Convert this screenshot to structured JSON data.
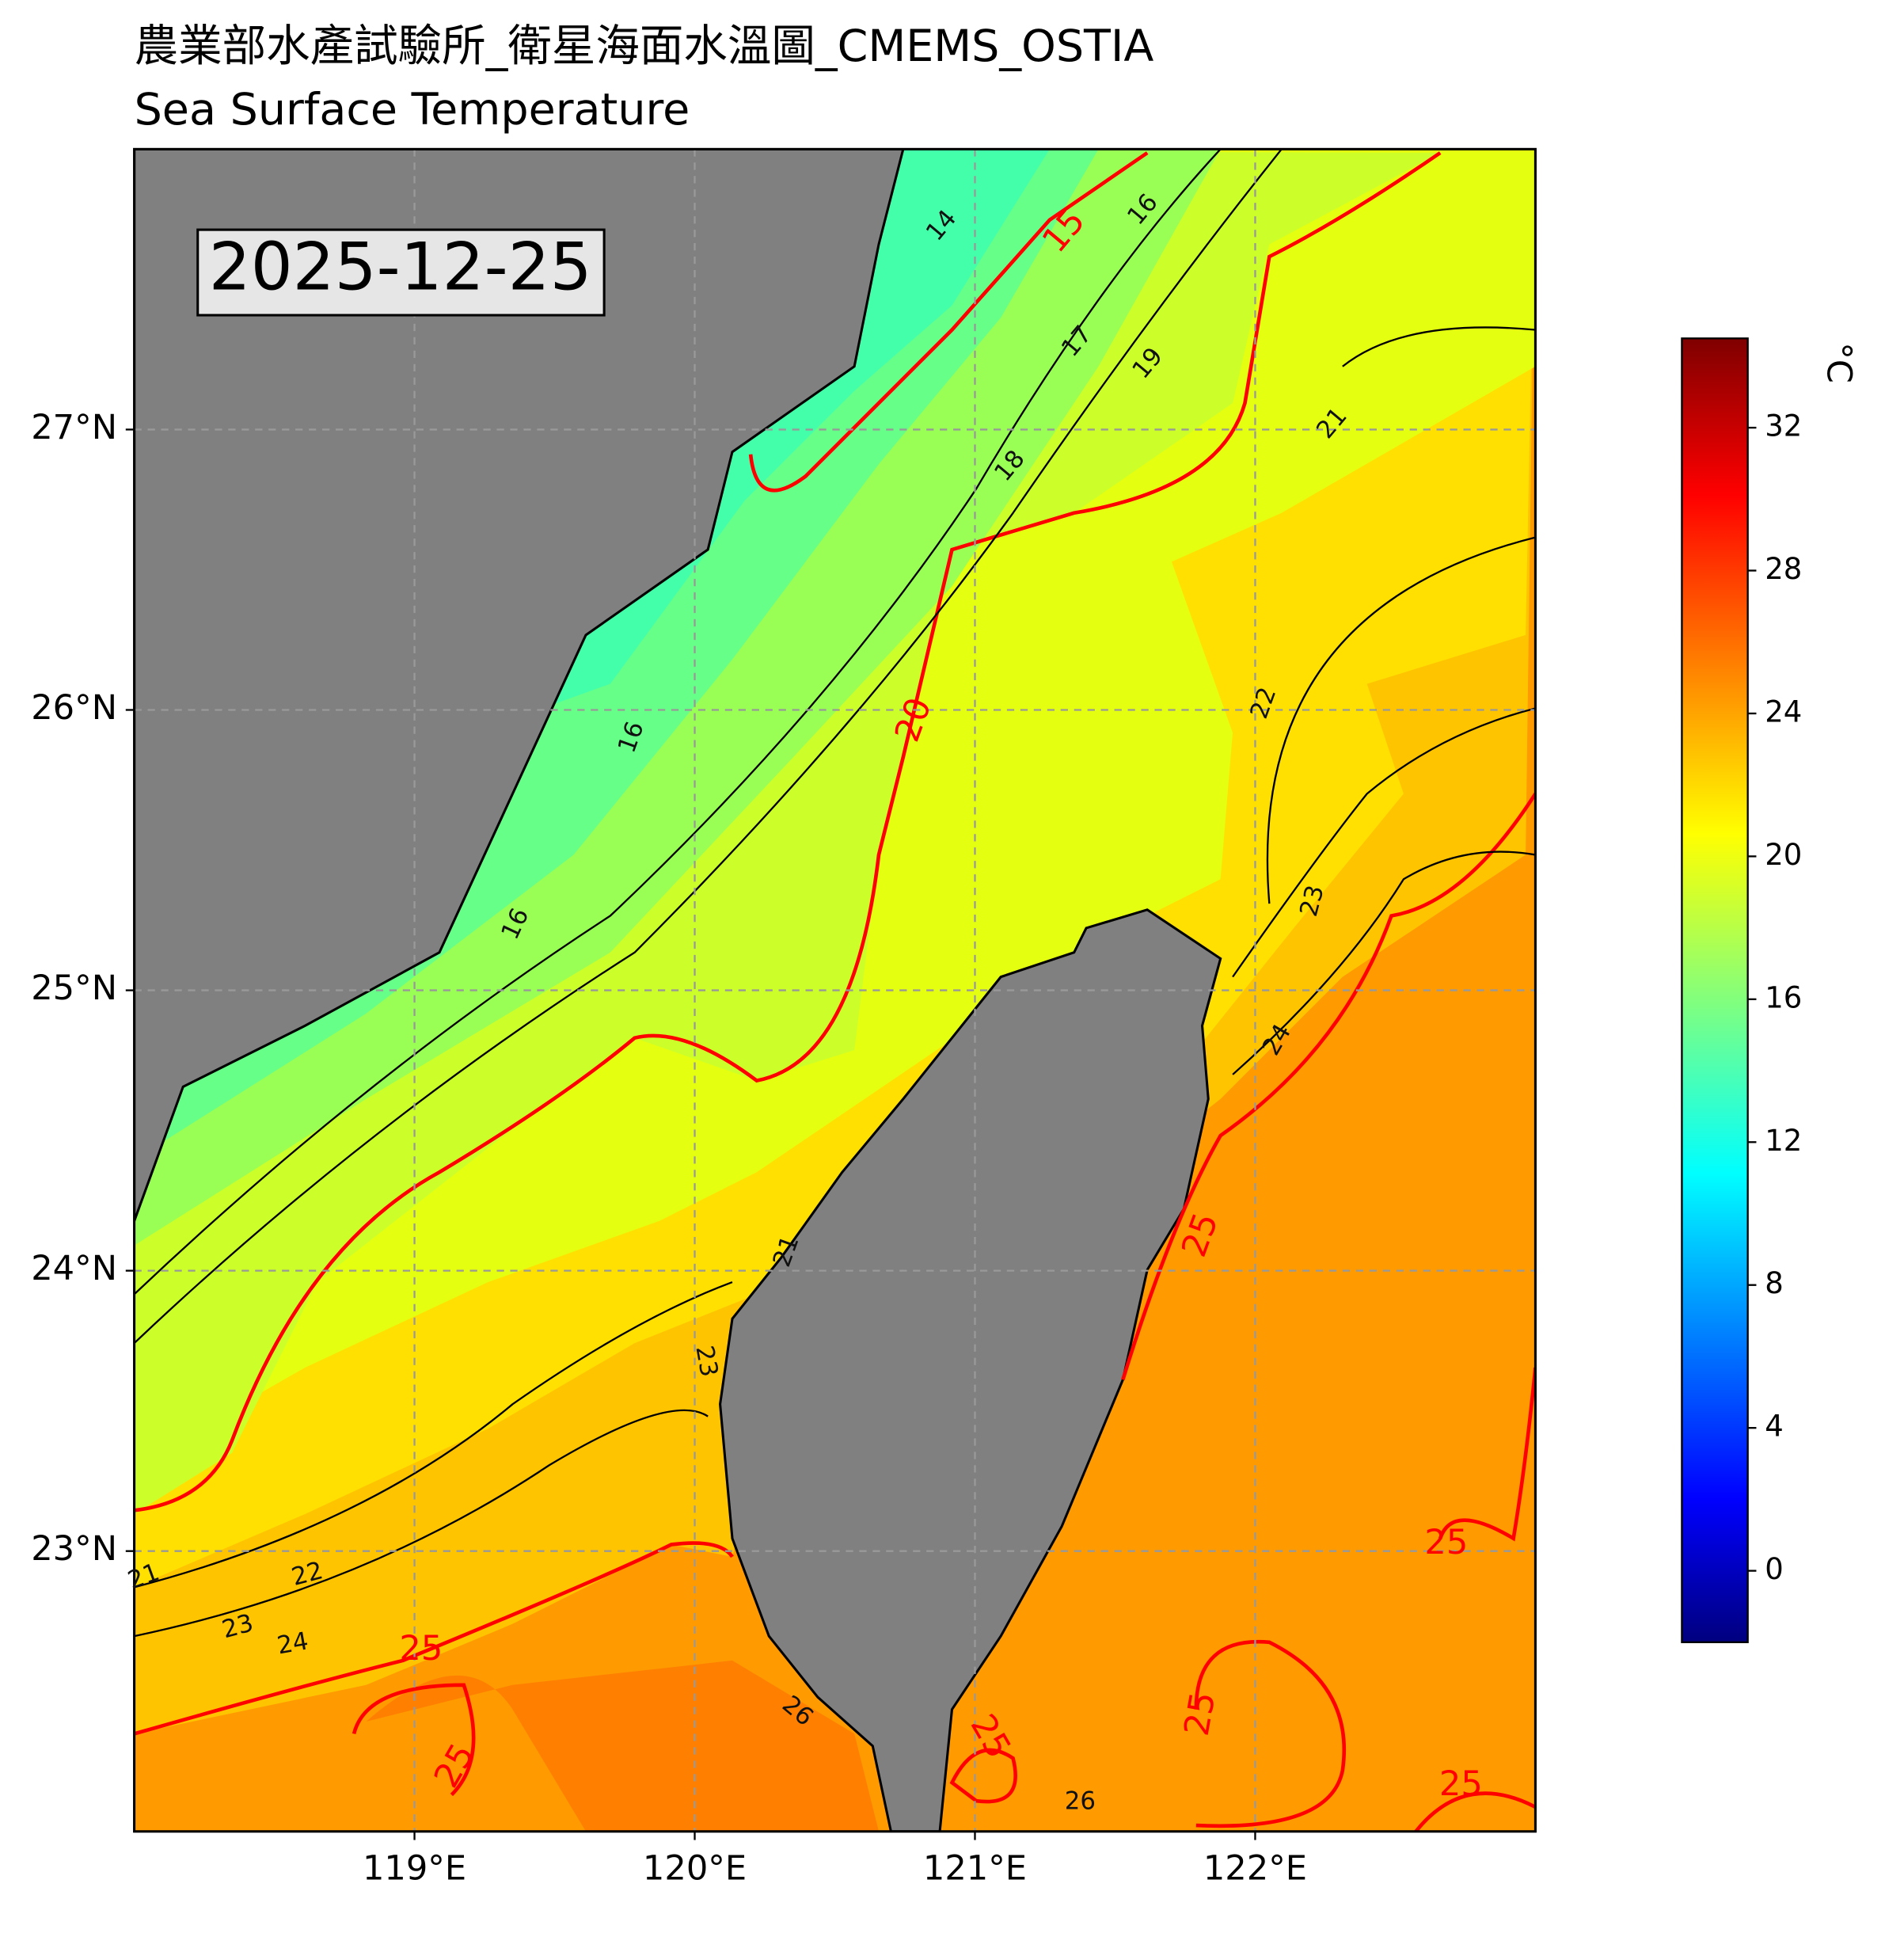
{
  "header": {
    "title": "農業部水產試驗所_衛星海面水溫圖_CMEMS_OSTIA",
    "subtitle": "Sea Surface Temperature"
  },
  "date": "2025-12-25",
  "map": {
    "lon_range": [
      118,
      123
    ],
    "lat_range": [
      22,
      28
    ],
    "xticks": [
      {
        "value": 119,
        "label": "119°E"
      },
      {
        "value": 120,
        "label": "120°E"
      },
      {
        "value": 121,
        "label": "121°E"
      },
      {
        "value": 122,
        "label": "122°E"
      }
    ],
    "yticks": [
      {
        "value": 23,
        "label": "23°N"
      },
      {
        "value": 24,
        "label": "24°N"
      },
      {
        "value": 25,
        "label": "25°N"
      },
      {
        "value": 26,
        "label": "26°N"
      },
      {
        "value": 27,
        "label": "27°N"
      }
    ],
    "contour_labels": [
      14,
      15,
      16,
      16,
      16,
      17,
      18,
      19,
      20,
      21,
      21,
      21,
      22,
      22,
      23,
      23,
      23,
      24,
      24,
      25,
      25,
      25,
      25,
      25,
      25,
      25,
      26,
      26
    ]
  },
  "colorbar": {
    "label": "°C",
    "range": [
      -2,
      34.5
    ],
    "ticks": [
      0,
      4,
      8,
      12,
      16,
      20,
      24,
      28,
      32
    ]
  }
}
